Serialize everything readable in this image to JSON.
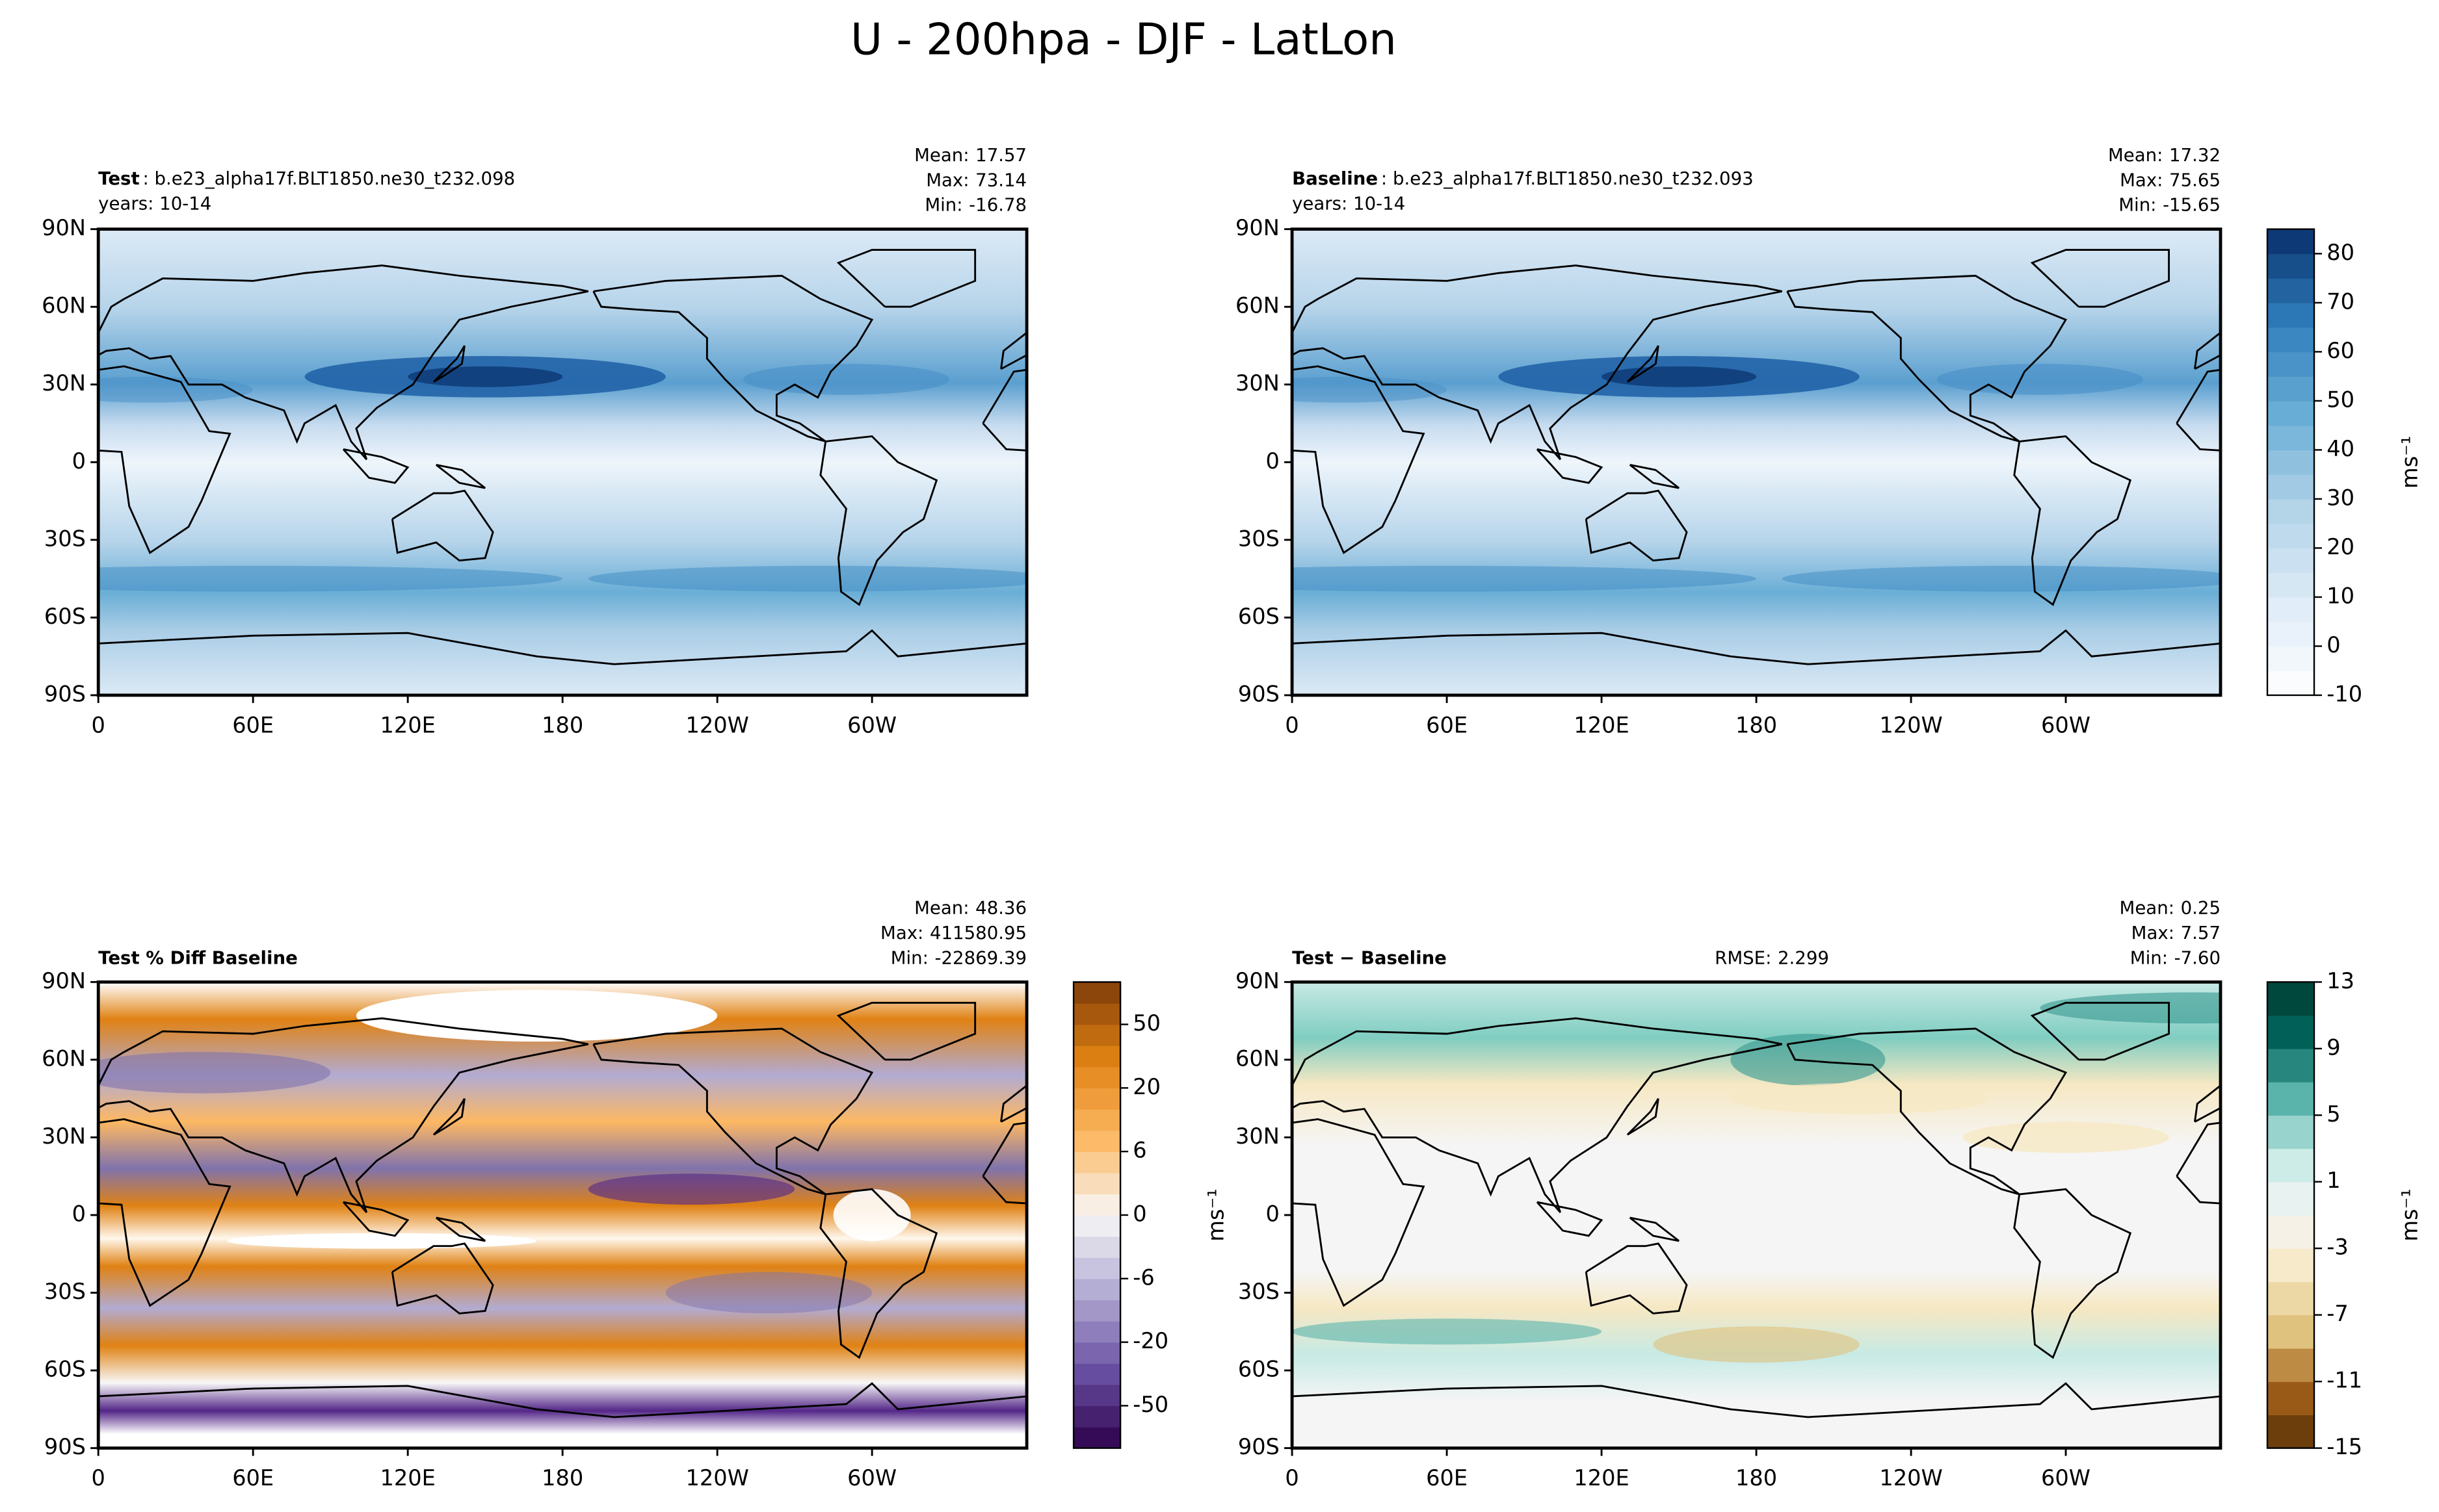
{
  "title": "U - 200hpa - DJF - LatLon",
  "chart_data": [
    {
      "type": "contour-map",
      "title": "Test",
      "case_name": ": b.e23_alpha17f.BLT1850.ne30_t232.098",
      "years": "years: 10-14",
      "stats": {
        "names": [
          "Mean:",
          "Max:",
          "Min:"
        ],
        "values": [
          17.57,
          73.14,
          -16.78
        ]
      },
      "xlim": [
        0,
        360
      ],
      "xticks": [
        0,
        {
          "value": 60,
          "label": "60E"
        },
        {
          "value": 120,
          "label": "120E"
        },
        180,
        {
          "value": 240,
          "label": "120W"
        },
        {
          "value": 300,
          "label": "60W"
        }
      ],
      "ylim": [
        -90,
        90
      ],
      "yticks": [
        {
          "value": -90,
          "label": "90S"
        },
        {
          "value": -60,
          "label": "60S"
        },
        {
          "value": -30,
          "label": "30S"
        },
        0,
        {
          "value": 30,
          "label": "30N"
        },
        {
          "value": 60,
          "label": "60N"
        },
        {
          "value": 90,
          "label": "90N"
        }
      ]
    },
    {
      "type": "contour-map",
      "title": "Baseline",
      "case_name": ": b.e23_alpha17f.BLT1850.ne30_t232.093",
      "years": "years: 10-14",
      "stats": {
        "names": [
          "Mean:",
          "Max:",
          "Min:"
        ],
        "values": [
          17.32,
          75.65,
          -15.65
        ]
      },
      "xlim": [
        0,
        360
      ],
      "xticks": [
        0,
        {
          "value": 60,
          "label": "60E"
        },
        {
          "value": 120,
          "label": "120E"
        },
        180,
        {
          "value": 240,
          "label": "120W"
        },
        {
          "value": 300,
          "label": "60W"
        }
      ],
      "ylim": [
        -90,
        90
      ],
      "yticks": [
        {
          "value": -90,
          "label": "90S"
        },
        {
          "value": -60,
          "label": "60S"
        },
        {
          "value": -30,
          "label": "30S"
        },
        0,
        {
          "value": 30,
          "label": "30N"
        },
        {
          "value": 60,
          "label": "60N"
        },
        {
          "value": 90,
          "label": "90N"
        }
      ],
      "colorbar": {
        "label": "ms⁻¹",
        "levels": [
          -10,
          -5,
          0,
          5,
          10,
          15,
          20,
          25,
          30,
          35,
          40,
          45,
          50,
          55,
          60,
          65,
          70,
          75,
          80,
          85
        ],
        "ticks": [
          -10,
          0,
          10,
          20,
          30,
          40,
          50,
          60,
          70,
          80
        ],
        "cmap": [
          "#ffffff",
          "#deebf7",
          "#b3d3e8",
          "#6aaed6",
          "#2f7ebc",
          "#08306b"
        ]
      }
    },
    {
      "type": "contour-map",
      "title": "Test % Diff Baseline",
      "stats": {
        "names": [
          "Mean:",
          "Max:",
          "Min:"
        ],
        "values": [
          48.36,
          411580.95,
          -22869.39
        ]
      },
      "xlim": [
        0,
        360
      ],
      "xticks": [
        0,
        {
          "value": 60,
          "label": "60E"
        },
        {
          "value": 120,
          "label": "120E"
        },
        180,
        {
          "value": 240,
          "label": "120W"
        },
        {
          "value": 300,
          "label": "60W"
        }
      ],
      "ylim": [
        -90,
        90
      ],
      "yticks": [
        {
          "value": -90,
          "label": "90S"
        },
        {
          "value": -60,
          "label": "60S"
        },
        {
          "value": -30,
          "label": "30S"
        },
        0,
        {
          "value": 30,
          "label": "30N"
        },
        {
          "value": 60,
          "label": "60N"
        },
        {
          "value": 90,
          "label": "90N"
        }
      ],
      "colorbar": {
        "label": "ms⁻¹",
        "levels": [
          -100,
          -75,
          -50,
          -40,
          -30,
          -20,
          -15,
          -10,
          -6,
          -4,
          -2,
          0,
          2,
          4,
          6,
          10,
          15,
          20,
          30,
          40,
          50,
          75,
          100
        ],
        "ticks": [
          -50,
          -20,
          -6,
          0,
          6,
          20,
          50
        ],
        "cmap": [
          "#2d004b",
          "#6a51a3",
          "#b2abd2",
          "#f7f7f7",
          "#fdb863",
          "#e08214",
          "#7f3b08"
        ]
      }
    },
    {
      "type": "contour-map",
      "title": "Test − Baseline",
      "rmse": {
        "name": "RMSE:",
        "value": 2.299
      },
      "stats": {
        "names": [
          "Mean:",
          "Max:",
          "Min:"
        ],
        "values": [
          0.25,
          7.57,
          -7.6
        ],
        "value_labels": [
          "0.25",
          "7.57",
          "-7.60"
        ]
      },
      "xlim": [
        0,
        360
      ],
      "xticks": [
        0,
        {
          "value": 60,
          "label": "60E"
        },
        {
          "value": 120,
          "label": "120E"
        },
        180,
        {
          "value": 240,
          "label": "120W"
        },
        {
          "value": 300,
          "label": "60W"
        }
      ],
      "ylim": [
        -90,
        90
      ],
      "yticks": [
        {
          "value": -90,
          "label": "90S"
        },
        {
          "value": -60,
          "label": "60S"
        },
        {
          "value": -30,
          "label": "30S"
        },
        0,
        {
          "value": 30,
          "label": "30N"
        },
        {
          "value": 60,
          "label": "60N"
        },
        {
          "value": 90,
          "label": "90N"
        }
      ],
      "colorbar": {
        "label": "ms⁻¹",
        "levels": [
          -15,
          -13,
          -11,
          -9,
          -7,
          -5,
          -3,
          -1,
          1,
          3,
          5,
          7,
          9,
          11,
          13
        ],
        "ticks": [
          -15,
          -11,
          -7,
          -3,
          1,
          5,
          9,
          13
        ],
        "cmap": [
          "#543005",
          "#a6611a",
          "#dfc27d",
          "#f6e8c3",
          "#f5f5f5",
          "#c7eae5",
          "#5ab4ac",
          "#01665e",
          "#003c30"
        ]
      }
    }
  ]
}
